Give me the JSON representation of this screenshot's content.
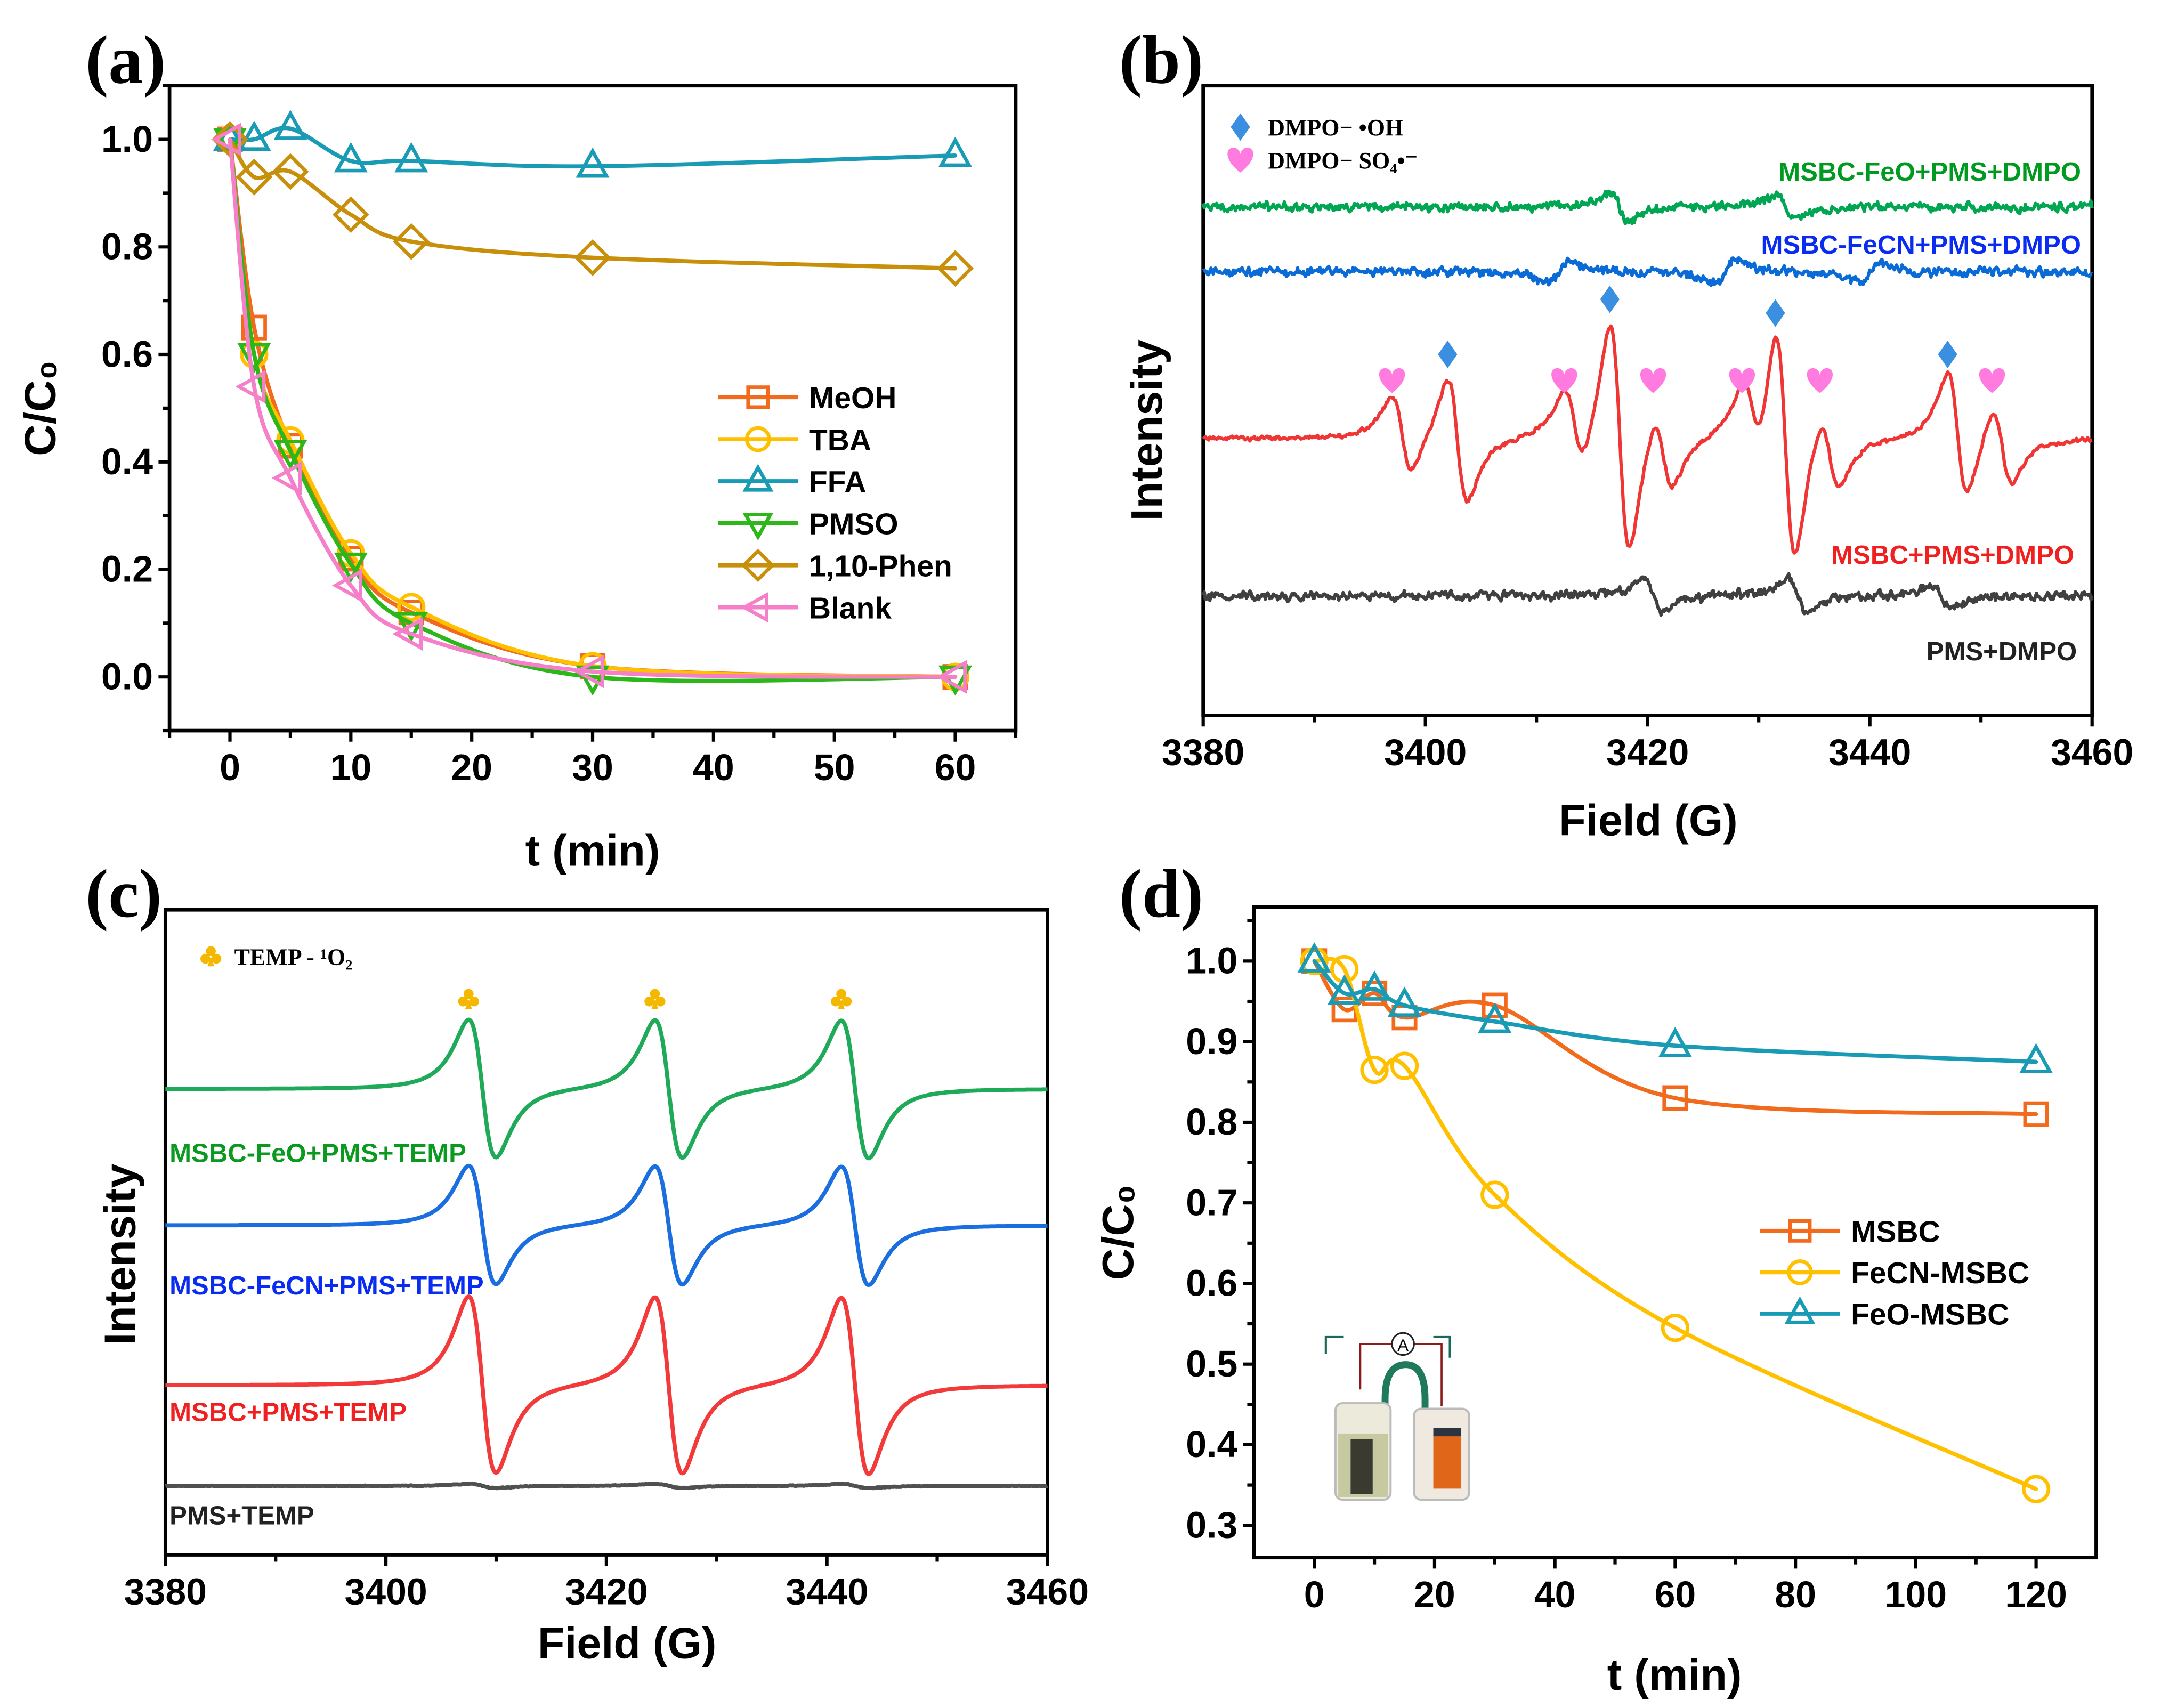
{
  "chart_data": [
    {
      "panel_label": "(a)",
      "type": "line",
      "title": "",
      "xlabel": "t (min)",
      "ylabel": "C/C₀",
      "xlim": [
        -5,
        65
      ],
      "ylim": [
        -0.1,
        1.1
      ],
      "xticks": [
        "0",
        "10",
        "20",
        "30",
        "40",
        "50",
        "60"
      ],
      "yticks": [
        "0.0",
        "0.2",
        "0.4",
        "0.6",
        "0.8",
        "1.0"
      ],
      "legend": "center-right",
      "x": [
        0,
        2,
        5,
        10,
        15,
        30,
        60
      ],
      "series": [
        {
          "name": "MeOH",
          "color": "#f26b1d",
          "marker": "square",
          "values": [
            1.0,
            0.65,
            0.43,
            0.22,
            0.12,
            0.02,
            0.0
          ]
        },
        {
          "name": "TBA",
          "color": "#ffc000",
          "marker": "circle",
          "values": [
            1.0,
            0.6,
            0.44,
            0.23,
            0.13,
            0.02,
            0.0
          ]
        },
        {
          "name": "FFA",
          "color": "#1a9bb5",
          "marker": "triangle-up",
          "values": [
            1.0,
            1.0,
            1.02,
            0.96,
            0.96,
            0.95,
            0.97
          ]
        },
        {
          "name": "PMSO",
          "color": "#2db81a",
          "marker": "triangle-down",
          "values": [
            1.0,
            0.6,
            0.42,
            0.21,
            0.1,
            0.0,
            0.0
          ]
        },
        {
          "name": "1,10-Phen",
          "color": "#c8900a",
          "marker": "diamond",
          "values": [
            1.0,
            0.93,
            0.94,
            0.86,
            0.81,
            0.78,
            0.76
          ]
        },
        {
          "name": "Blank",
          "color": "#f57fc8",
          "marker": "triangle-left",
          "values": [
            1.0,
            0.54,
            0.37,
            0.17,
            0.08,
            0.01,
            0.0
          ]
        }
      ]
    },
    {
      "panel_label": "(b)",
      "type": "line",
      "title": "",
      "xlabel": "Field (G)",
      "ylabel": "Intensity",
      "xlim": [
        3380,
        3460
      ],
      "xticks": [
        "3380",
        "3400",
        "3420",
        "3440",
        "3460"
      ],
      "legend": "top-left",
      "legend_entries": [
        {
          "label": "DMPO− •OH",
          "color": "#3a8fe0",
          "marker": "diamond"
        },
        {
          "label": "DMPO− SO₄•⁻",
          "color": "#ff7be0",
          "marker": "heart"
        }
      ],
      "peak_markers": {
        "oh_fields": [
          3402,
          3416.6,
          3431.5,
          3447
        ],
        "so4_fields": [
          3397,
          3412.5,
          3420.5,
          3428.5,
          3435.5,
          3451
        ]
      },
      "series": [
        {
          "name": "MSBC-FeO+PMS+DMPO",
          "color": "#00a651",
          "label_color": "#009a20"
        },
        {
          "name": "MSBC-FeCN+PMS+DMPO",
          "color": "#0a6bd6",
          "label_color": "#0a2cf0"
        },
        {
          "name": "MSBC+PMS+DMPO",
          "color": "#f03535",
          "label_color": "#f02020"
        },
        {
          "name": "PMS+DMPO",
          "color": "#404040",
          "label_color": "#222222"
        }
      ]
    },
    {
      "panel_label": "(c)",
      "type": "line",
      "title": "",
      "xlabel": "Field (G)",
      "ylabel": "Intensity",
      "xlim": [
        3380,
        3460
      ],
      "xticks": [
        "3380",
        "3400",
        "3420",
        "3440",
        "3460"
      ],
      "legend": "top-left",
      "legend_entries": [
        {
          "label": "TEMP - ¹O₂",
          "color": "#f5b800",
          "marker": "club"
        }
      ],
      "peak_markers": {
        "fields": [
          3407.5,
          3424.4,
          3441.3
        ]
      },
      "series": [
        {
          "name": "MSBC-FeO+PMS+TEMP",
          "color": "#1faa5a",
          "label_color": "#0a9a20"
        },
        {
          "name": "MSBC-FeCN+PMS+TEMP",
          "color": "#1a6ee0",
          "label_color": "#0a2cf0"
        },
        {
          "name": "MSBC+PMS+TEMP",
          "color": "#f23a3a",
          "label_color": "#f02020"
        },
        {
          "name": "PMS+TEMP",
          "color": "#505050",
          "label_color": "#222222"
        }
      ]
    },
    {
      "panel_label": "(d)",
      "type": "line",
      "title": "",
      "xlabel": "t (min)",
      "ylabel": "C/C₀",
      "xlim": [
        -10,
        130
      ],
      "ylim": [
        0.26,
        1.067
      ],
      "xticks": [
        "0",
        "20",
        "40",
        "60",
        "80",
        "100",
        "120"
      ],
      "yticks": [
        "0.3",
        "0.4",
        "0.5",
        "0.6",
        "0.7",
        "0.8",
        "0.9",
        "1.0"
      ],
      "legend": "center-right",
      "x": [
        0,
        5,
        10,
        15,
        30,
        60,
        120
      ],
      "series": [
        {
          "name": "MSBC",
          "color": "#f26b1d",
          "marker": "square",
          "values": [
            1.0,
            0.94,
            0.96,
            0.93,
            0.945,
            0.83,
            0.81
          ]
        },
        {
          "name": "FeCN-MSBC",
          "color": "#ffc000",
          "marker": "circle",
          "values": [
            1.0,
            0.99,
            0.865,
            0.87,
            0.71,
            0.545,
            0.345
          ]
        },
        {
          "name": "FeO-MSBC",
          "color": "#1a9bb5",
          "marker": "triangle-up",
          "values": [
            1.0,
            0.96,
            0.965,
            0.945,
            0.925,
            0.895,
            0.875
          ]
        }
      ],
      "inset": {
        "ammeter_label": "A"
      }
    }
  ]
}
